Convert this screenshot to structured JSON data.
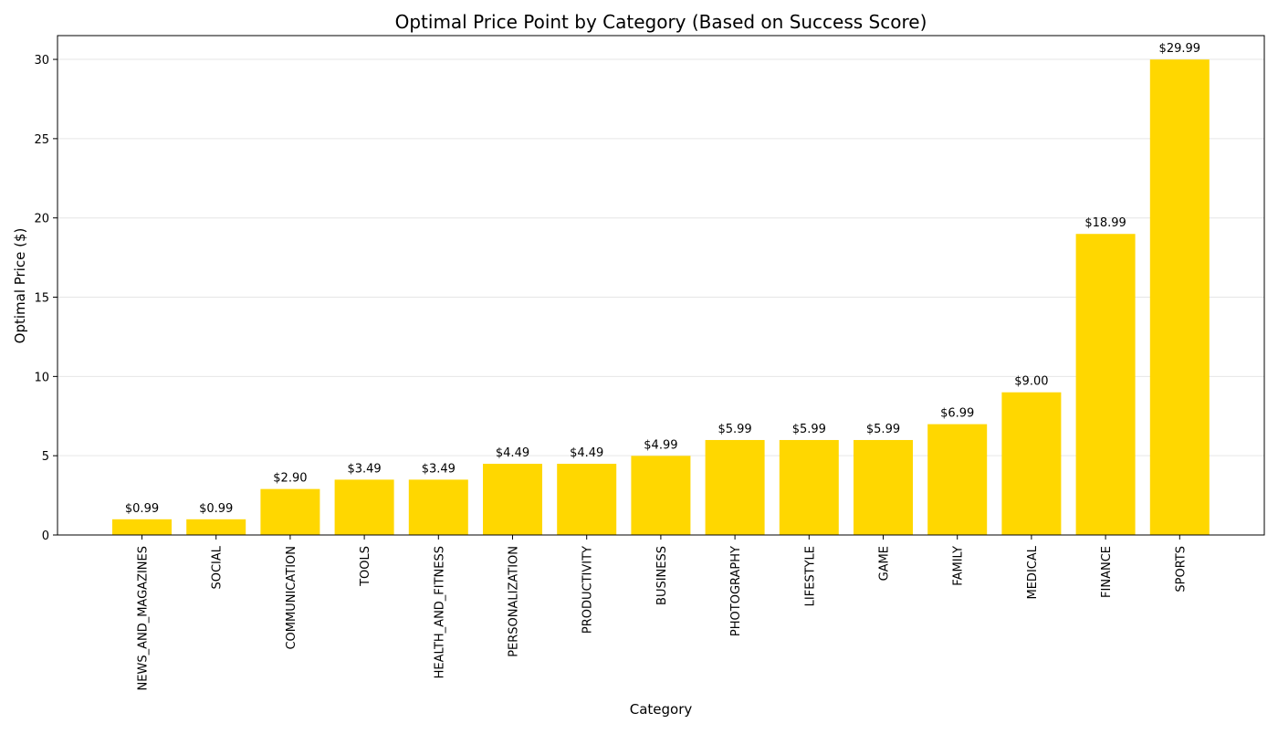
{
  "chart_data": {
    "type": "bar",
    "title": "Optimal Price Point by Category (Based on Success Score)",
    "xlabel": "Category",
    "ylabel": "Optimal Price ($)",
    "categories": [
      "NEWS_AND_MAGAZINES",
      "SOCIAL",
      "COMMUNICATION",
      "TOOLS",
      "HEALTH_AND_FITNESS",
      "PERSONALIZATION",
      "PRODUCTIVITY",
      "BUSINESS",
      "PHOTOGRAPHY",
      "LIFESTYLE",
      "GAME",
      "FAMILY",
      "MEDICAL",
      "FINANCE",
      "SPORTS"
    ],
    "values": [
      0.99,
      0.99,
      2.9,
      3.49,
      3.49,
      4.49,
      4.49,
      4.99,
      5.99,
      5.99,
      5.99,
      6.99,
      9.0,
      18.99,
      29.99
    ],
    "value_labels": [
      "$0.99",
      "$0.99",
      "$2.90",
      "$3.49",
      "$3.49",
      "$4.49",
      "$4.49",
      "$4.99",
      "$5.99",
      "$5.99",
      "$5.99",
      "$6.99",
      "$9.00",
      "$18.99",
      "$29.99"
    ],
    "ylim": [
      0,
      31.5
    ],
    "yticks": [
      0,
      5,
      10,
      15,
      20,
      25,
      30
    ],
    "ytick_labels": [
      "0",
      "5",
      "10",
      "15",
      "20",
      "25",
      "30"
    ],
    "grid": "horizontal",
    "bar_color": "#FFD700"
  }
}
